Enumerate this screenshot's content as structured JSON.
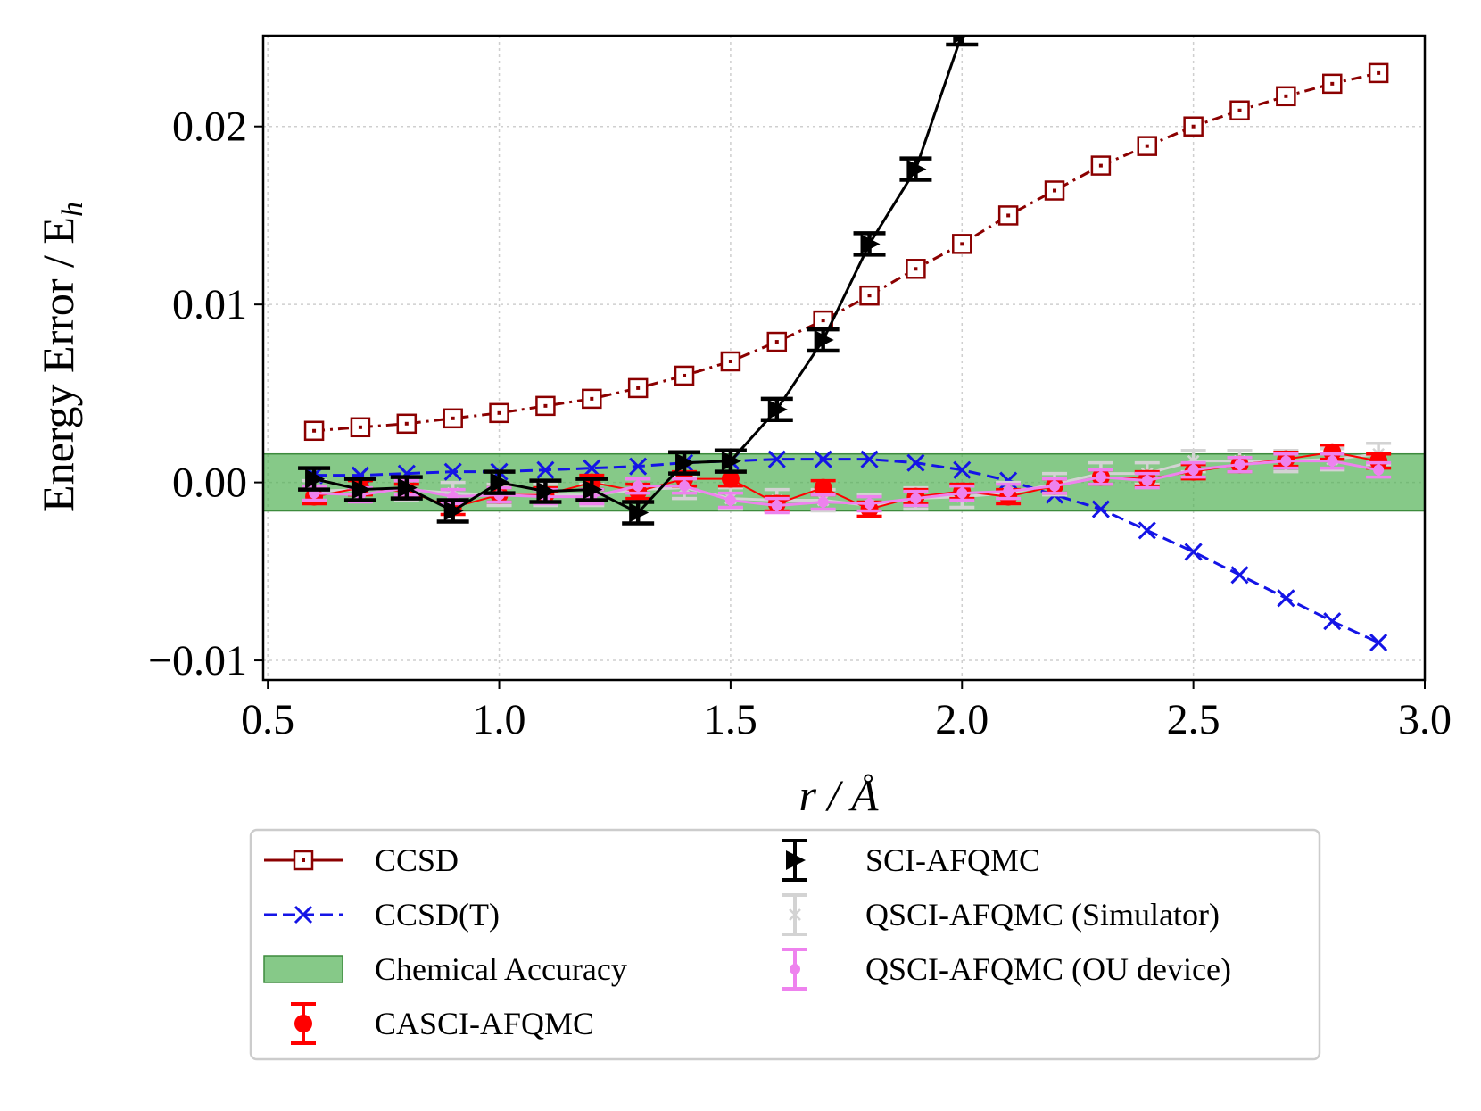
{
  "chart_data": {
    "type": "line",
    "xlabel": "r / Å",
    "ylabel": "Energy Error / E",
    "ylabel_sub": "h",
    "xlim": [
      0.49,
      3.0
    ],
    "ylim": [
      -0.0111,
      0.0251
    ],
    "grid": true,
    "x_ticks": [
      0.5,
      1.0,
      1.5,
      2.0,
      2.5,
      3.0
    ],
    "x_tick_labels": [
      "0.5",
      "1.0",
      "1.5",
      "2.0",
      "2.5",
      "3.0"
    ],
    "y_ticks": [
      -0.01,
      0.0,
      0.01,
      0.02
    ],
    "y_tick_labels": [
      "−0.01",
      "0.00",
      "0.01",
      "0.02"
    ],
    "chemical_accuracy": {
      "label": "Chemical Accuracy",
      "lower": -0.0016,
      "upper": 0.0016,
      "color": "#4caf50"
    },
    "legend_position": "below",
    "series": [
      {
        "name": "CCSD",
        "color": "#8b0000",
        "marker": "square-open",
        "line": "dashdot",
        "x": [
          0.6,
          0.7,
          0.8,
          0.9,
          1.0,
          1.1,
          1.2,
          1.3,
          1.4,
          1.5,
          1.6,
          1.7,
          1.8,
          1.9,
          2.0,
          2.1,
          2.2,
          2.3,
          2.4,
          2.5,
          2.6,
          2.7,
          2.8,
          2.9
        ],
        "y": [
          0.0029,
          0.0031,
          0.0033,
          0.0036,
          0.0039,
          0.0043,
          0.0047,
          0.0053,
          0.006,
          0.0068,
          0.0079,
          0.0091,
          0.0105,
          0.012,
          0.0134,
          0.015,
          0.0164,
          0.0178,
          0.0189,
          0.02,
          0.0209,
          0.0217,
          0.0224,
          0.023
        ]
      },
      {
        "name": "CCSD(T)",
        "color": "#1414e6",
        "marker": "x",
        "line": "dashed",
        "x": [
          0.6,
          0.7,
          0.8,
          0.9,
          1.0,
          1.1,
          1.2,
          1.3,
          1.4,
          1.5,
          1.6,
          1.7,
          1.8,
          1.9,
          2.0,
          2.1,
          2.2,
          2.3,
          2.4,
          2.5,
          2.6,
          2.7,
          2.8,
          2.9
        ],
        "y": [
          0.0004,
          0.0004,
          0.0005,
          0.0006,
          0.0006,
          0.0007,
          0.0008,
          0.0009,
          0.0011,
          0.0012,
          0.0013,
          0.0013,
          0.0013,
          0.0011,
          0.0007,
          0.0001,
          -0.0007,
          -0.0015,
          -0.0027,
          -0.0039,
          -0.0052,
          -0.0065,
          -0.0078,
          -0.009
        ]
      },
      {
        "name": "CASCI-AFQMC",
        "color": "#ff0000",
        "marker": "circle",
        "line": "solid",
        "x": [
          0.6,
          0.7,
          0.8,
          0.9,
          1.0,
          1.1,
          1.2,
          1.3,
          1.4,
          1.5,
          1.6,
          1.7,
          1.8,
          1.9,
          2.0,
          2.1,
          2.2,
          2.3,
          2.4,
          2.5,
          2.6,
          2.7,
          2.8,
          2.9
        ],
        "y": [
          -0.0008,
          -0.0003,
          -0.0005,
          -0.0014,
          -0.0007,
          -0.0007,
          0.0,
          -0.0005,
          0.0002,
          0.0002,
          -0.0012,
          -0.0003,
          -0.0015,
          -0.0008,
          -0.0005,
          -0.0008,
          -0.0002,
          0.0003,
          0.0002,
          0.0006,
          0.001,
          0.0013,
          0.0017,
          0.0012
        ],
        "yerr": 0.0004
      },
      {
        "name": "SCI-AFQMC",
        "color": "#000000",
        "marker": "triangle-right",
        "line": "solid",
        "x": [
          0.6,
          0.7,
          0.8,
          0.9,
          1.0,
          1.1,
          1.2,
          1.3,
          1.4,
          1.5,
          1.6,
          1.7,
          1.8,
          1.9,
          2.0
        ],
        "y": [
          0.0002,
          -0.0004,
          -0.0003,
          -0.0016,
          0.0,
          -0.0005,
          -0.0004,
          -0.0017,
          0.0011,
          0.0012,
          0.0041,
          0.008,
          0.0134,
          0.0176,
          0.0252
        ],
        "yerr": 0.0006
      },
      {
        "name": "QSCI-AFQMC (Simulator)",
        "color": "#d3d3d3",
        "marker": "x-small",
        "line": "solid",
        "x": [
          0.6,
          0.7,
          0.8,
          0.9,
          1.0,
          1.1,
          1.2,
          1.3,
          1.4,
          1.5,
          1.6,
          1.7,
          1.8,
          1.9,
          2.0,
          2.1,
          2.2,
          2.3,
          2.4,
          2.5,
          2.6,
          2.7,
          2.8,
          2.9
        ],
        "y": [
          -0.0005,
          -0.0004,
          -0.0004,
          -0.0006,
          -0.0007,
          -0.0007,
          -0.0007,
          -0.0004,
          -0.0003,
          -0.0009,
          -0.001,
          -0.001,
          -0.0013,
          -0.0009,
          -0.0008,
          -0.0006,
          -0.0001,
          0.0005,
          0.0005,
          0.0012,
          0.0012,
          0.0012,
          0.0013,
          0.0016
        ],
        "yerr": 0.0006
      },
      {
        "name": "QSCI-AFQMC (OU device)",
        "color": "#ee82ee",
        "marker": "dot",
        "line": "solid",
        "x": [
          0.6,
          0.7,
          0.8,
          0.9,
          1.0,
          1.1,
          1.2,
          1.3,
          1.4,
          1.5,
          1.6,
          1.7,
          1.8,
          1.9,
          2.0,
          2.1,
          2.2,
          2.3,
          2.4,
          2.5,
          2.6,
          2.7,
          2.8,
          2.9
        ],
        "y": [
          -0.0006,
          -0.0007,
          -0.0003,
          -0.0008,
          -0.0007,
          -0.0008,
          -0.0008,
          -0.0002,
          -0.0002,
          -0.001,
          -0.0013,
          -0.0011,
          -0.0012,
          -0.0009,
          -0.0006,
          -0.0005,
          -0.0002,
          0.0003,
          0.0001,
          0.0007,
          0.001,
          0.0012,
          0.0012,
          0.0007
        ],
        "yerr": 0.0004
      }
    ]
  }
}
